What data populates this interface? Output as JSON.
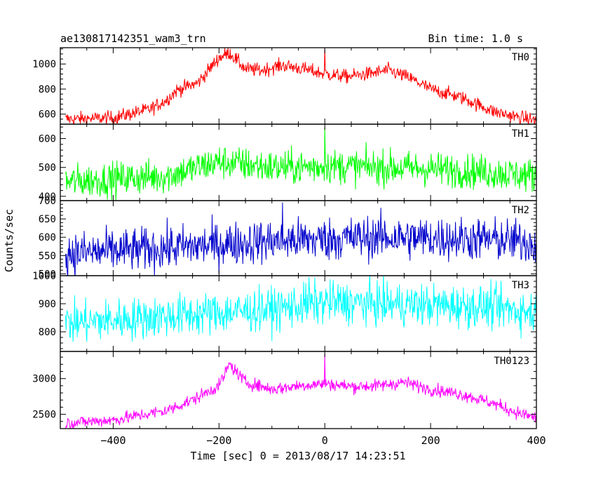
{
  "header": {
    "title": "ae130817142351_wam3_trn",
    "bin_time": "Bin time: 1.0 s"
  },
  "y_axis_label": "Counts/sec",
  "x_axis_label": "Time [sec] 0 = 2013/08/17 14:23:51",
  "chart_data": {
    "type": "line",
    "x_range": [
      -500,
      400
    ],
    "x_ticks": [
      -400,
      -200,
      0,
      200,
      400
    ],
    "x_tick_labels": [
      "−400",
      "−200",
      "0",
      "200",
      "400"
    ],
    "panels": [
      {
        "name": "TH0",
        "color": "#ff0000",
        "ylim": [
          520,
          1130
        ],
        "yticks": [
          600,
          800,
          1000
        ],
        "ytick_labels": [
          "600",
          "800",
          "1000"
        ],
        "profile_x": [
          -490,
          -400,
          -330,
          -300,
          -280,
          -240,
          -200,
          -180,
          -150,
          -120,
          -80,
          -40,
          0,
          40,
          80,
          120,
          160,
          200,
          260,
          320,
          360,
          400
        ],
        "profile_y": [
          560,
          570,
          640,
          710,
          790,
          850,
          1050,
          1090,
          960,
          950,
          990,
          960,
          920,
          900,
          920,
          950,
          890,
          800,
          730,
          620,
          580,
          550
        ],
        "noise": 28,
        "spike_x": 0,
        "spike_y": 1120
      },
      {
        "name": "TH1",
        "color": "#00ff00",
        "ylim": [
          385,
          650
        ],
        "yticks": [
          400,
          500,
          600
        ],
        "ytick_labels": [
          "400",
          "500",
          "600"
        ],
        "profile_x": [
          -490,
          -400,
          -300,
          -250,
          -200,
          -150,
          -100,
          -50,
          0,
          100,
          200,
          300,
          400
        ],
        "profile_y": [
          450,
          460,
          470,
          495,
          520,
          510,
          500,
          500,
          505,
          500,
          495,
          485,
          470
        ],
        "noise": 30,
        "spike_x": 0,
        "spike_y": 640
      },
      {
        "name": "TH2",
        "color": "#0000cc",
        "ylim": [
          495,
          700
        ],
        "yticks": [
          500,
          550,
          600,
          650,
          700
        ],
        "ytick_labels": [
          "500",
          "550",
          "600",
          "650",
          "700"
        ],
        "profile_x": [
          -490,
          -300,
          -100,
          0,
          100,
          300,
          400
        ],
        "profile_y": [
          555,
          570,
          590,
          595,
          600,
          595,
          585
        ],
        "noise": 30,
        "spike_x": -80,
        "spike_y": 695
      },
      {
        "name": "TH3",
        "color": "#00ffff",
        "ylim": [
          730,
          1000
        ],
        "yticks": [
          800,
          900,
          1000
        ],
        "ytick_labels": [
          "800",
          "900",
          "1000"
        ],
        "profile_x": [
          -490,
          -300,
          -100,
          0,
          100,
          300,
          400
        ],
        "profile_y": [
          830,
          855,
          880,
          905,
          900,
          890,
          870
        ],
        "noise": 38,
        "spike_x": -30,
        "spike_y": 995
      },
      {
        "name": "TH0123",
        "color": "#ff00ff",
        "ylim": [
          2300,
          3380
        ],
        "yticks": [
          2500,
          3000
        ],
        "ytick_labels": [
          "2500",
          "3000"
        ],
        "profile_x": [
          -490,
          -400,
          -300,
          -250,
          -200,
          -180,
          -150,
          -100,
          -50,
          0,
          50,
          100,
          150,
          200,
          260,
          320,
          360,
          400
        ],
        "profile_y": [
          2380,
          2420,
          2550,
          2700,
          2900,
          3200,
          2950,
          2850,
          2900,
          2930,
          2890,
          2900,
          2950,
          2850,
          2780,
          2650,
          2530,
          2450
        ],
        "noise": 45,
        "spike_x": 0,
        "spike_y": 3350
      }
    ]
  }
}
